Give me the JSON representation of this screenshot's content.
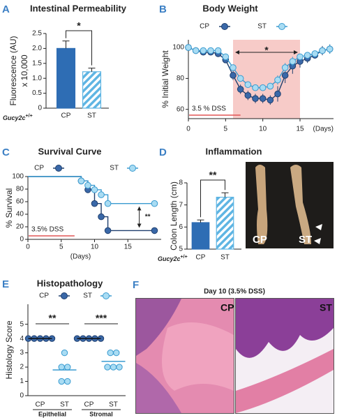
{
  "chart_data": [
    {
      "type": "bar",
      "panel": "A",
      "title": "Intestinal Permeability",
      "y_label": "Fluorescence (AU)",
      "y_label2": "x 10,000",
      "genotype": "Gucy2c",
      "genotype_sup": "+/+",
      "categories": [
        "CP",
        "ST"
      ],
      "values": [
        2.0,
        1.22
      ],
      "errors": [
        0.25,
        0.12
      ],
      "colors": [
        "#2e6db4",
        "#5fb5e3"
      ],
      "hatch": [
        false,
        true
      ],
      "significance": "*",
      "ylim": [
        0,
        2.5
      ],
      "yticks": [
        0,
        0.5,
        {
          "value": 1,
          "label": "1.0"
        },
        1.5,
        {
          "value": 2,
          "label": "2.0"
        },
        2.5
      ]
    },
    {
      "type": "line",
      "panel": "B",
      "title": "Body Weight",
      "y_label": "% Initial Weight",
      "x_label": "(Days)",
      "x": [
        0,
        1,
        2,
        3,
        4,
        5,
        6,
        7,
        8,
        9,
        10,
        11,
        12,
        13,
        14,
        15,
        16,
        17,
        18,
        19
      ],
      "series": [
        {
          "name": "CP",
          "color": "#3a68a8",
          "edge": "#1f3f6e",
          "values": [
            100,
            98,
            97,
            97,
            96,
            92,
            82,
            73,
            69,
            67,
            67,
            66,
            70,
            82,
            88,
            91,
            93,
            95,
            98,
            99
          ],
          "errors": [
            0,
            1,
            1,
            1,
            1,
            2,
            3,
            3,
            3,
            3,
            3,
            3,
            5,
            5,
            5,
            4,
            3,
            2,
            3,
            3
          ]
        },
        {
          "name": "ST",
          "color": "#a9dcf3",
          "edge": "#3a9bd0",
          "values": [
            100,
            98,
            98,
            98,
            98,
            94,
            87,
            80,
            76,
            74,
            74,
            75,
            79,
            87,
            91,
            94,
            95,
            96,
            98,
            99
          ],
          "errors": [
            0,
            1,
            1,
            1,
            1,
            2,
            2,
            2,
            2,
            2,
            2,
            2,
            3,
            3,
            3,
            2,
            2,
            2,
            2,
            3
          ]
        }
      ],
      "xlim": [
        0,
        19.5
      ],
      "ylim": [
        54,
        105
      ],
      "xticks": [
        0,
        5,
        10,
        15
      ],
      "yticks": [
        60,
        80,
        100
      ],
      "shade": [
        6,
        15
      ],
      "shade_color": "#f7cbc8",
      "dss_label": "3.5 % DSS",
      "dss_range": [
        0,
        7
      ],
      "dss_color": "#e05555",
      "significance": "*"
    },
    {
      "type": "line",
      "step": true,
      "panel": "C",
      "title": "Survival Curve",
      "y_label": "% Survival",
      "x_label": "(Days)",
      "x": [
        0,
        7,
        8,
        9,
        10,
        11,
        12,
        19
      ],
      "series": [
        {
          "name": "CP",
          "color": "#3a68a8",
          "edge": "#1f3f6e",
          "values": [
            100,
            100,
            93,
            79,
            57,
            36,
            14,
            14
          ]
        },
        {
          "name": "ST",
          "color": "#a9dcf3",
          "edge": "#3a9bd0",
          "values": [
            100,
            100,
            93,
            86,
            79,
            71,
            57,
            57
          ]
        }
      ],
      "xlim": [
        0,
        20
      ],
      "ylim": [
        0,
        100
      ],
      "xticks": [
        0,
        5,
        10,
        15
      ],
      "yticks": [
        0,
        20,
        40,
        60,
        80,
        100
      ],
      "dss_label": "3.5% DSS",
      "dss_range": [
        0,
        7
      ],
      "dss_color": "#e05555",
      "significance": "**"
    },
    {
      "type": "bar",
      "panel": "D",
      "title": "Inflammation",
      "y_label": "Colon Length (cm)",
      "genotype": "Gucy2c",
      "genotype_sup": "+/+",
      "categories": [
        "CP",
        "ST"
      ],
      "values": [
        6.2,
        7.35
      ],
      "errors": [
        0.12,
        0.2
      ],
      "colors": [
        "#2e6db4",
        "#5fb5e3"
      ],
      "hatch": [
        false,
        true
      ],
      "significance": "**",
      "ylim": [
        5,
        8
      ],
      "yticks": [
        5,
        6,
        7,
        8
      ],
      "photo_labels": [
        "CP",
        "ST"
      ]
    },
    {
      "type": "scatter",
      "panel": "E",
      "title": "Histopathology",
      "y_label": "Histology Score",
      "groups": [
        "Epithelial",
        "Stromal"
      ],
      "categories": [
        "CP",
        "ST",
        "CP",
        "ST"
      ],
      "series": [
        {
          "name": "CP",
          "color": "#3a68a8",
          "edge": "#1f3f6e",
          "mean_color": "#111111",
          "values": [
            [
              4,
              4,
              4,
              4,
              4
            ],
            [
              4,
              4,
              4,
              4,
              4
            ]
          ],
          "means": [
            4,
            4
          ]
        },
        {
          "name": "ST",
          "color": "#a9dcf3",
          "edge": "#3a9bd0",
          "mean_color": "#3a9bd0",
          "values": [
            [
              3,
              2,
              2,
              1,
              1
            ],
            [
              3,
              3,
              2,
              2,
              2
            ]
          ],
          "means": [
            1.8,
            2.4
          ]
        }
      ],
      "significance": [
        "**",
        "***"
      ],
      "ylim": [
        0,
        6.4
      ],
      "yticks": [
        0,
        1,
        2,
        3,
        4,
        5
      ]
    }
  ],
  "histology": {
    "panel": "F",
    "title": "Day 10 (3.5% DSS)",
    "labels": [
      "CP",
      "ST"
    ]
  }
}
